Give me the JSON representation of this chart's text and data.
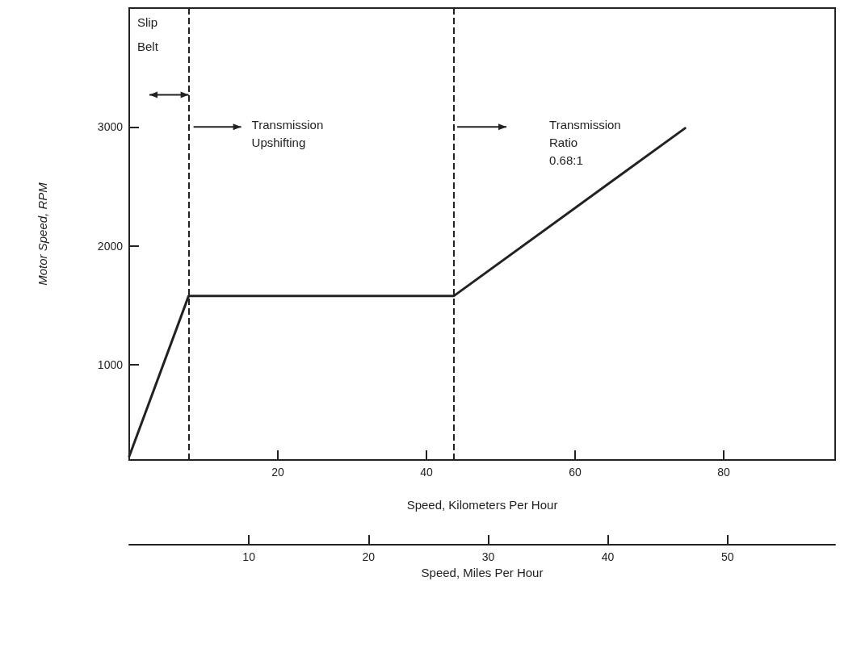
{
  "chart_data": {
    "type": "line",
    "xlabel": "Speed, Kilometers Per Hour",
    "ylabel": "Motor Speed, RPM",
    "x2label": "Speed, Miles Per Hour",
    "x": [
      0,
      8,
      43.7,
      74.8
    ],
    "values": [
      230,
      1580,
      1580,
      2990
    ],
    "color": "#222222",
    "marker": "none",
    "line_style": "solid",
    "grid": false,
    "xlim": [
      0,
      95
    ],
    "xticks": [
      20,
      40,
      60,
      80
    ],
    "ylim": [
      200,
      4000
    ],
    "yticks": [
      1000,
      2000,
      3000
    ],
    "x2lim": [
      0,
      59
    ],
    "x2ticks": [
      10,
      20,
      30,
      40,
      50
    ],
    "ref_lines": [
      {
        "axis": "x",
        "value": 8,
        "line_style": "dashed"
      },
      {
        "axis": "x",
        "value": 43.7,
        "line_style": "dashed"
      }
    ],
    "annotations": [
      "Slip",
      "Belt",
      "Transmission\nUpshifting",
      "Transmission\nRatio\n0.68:1"
    ]
  }
}
